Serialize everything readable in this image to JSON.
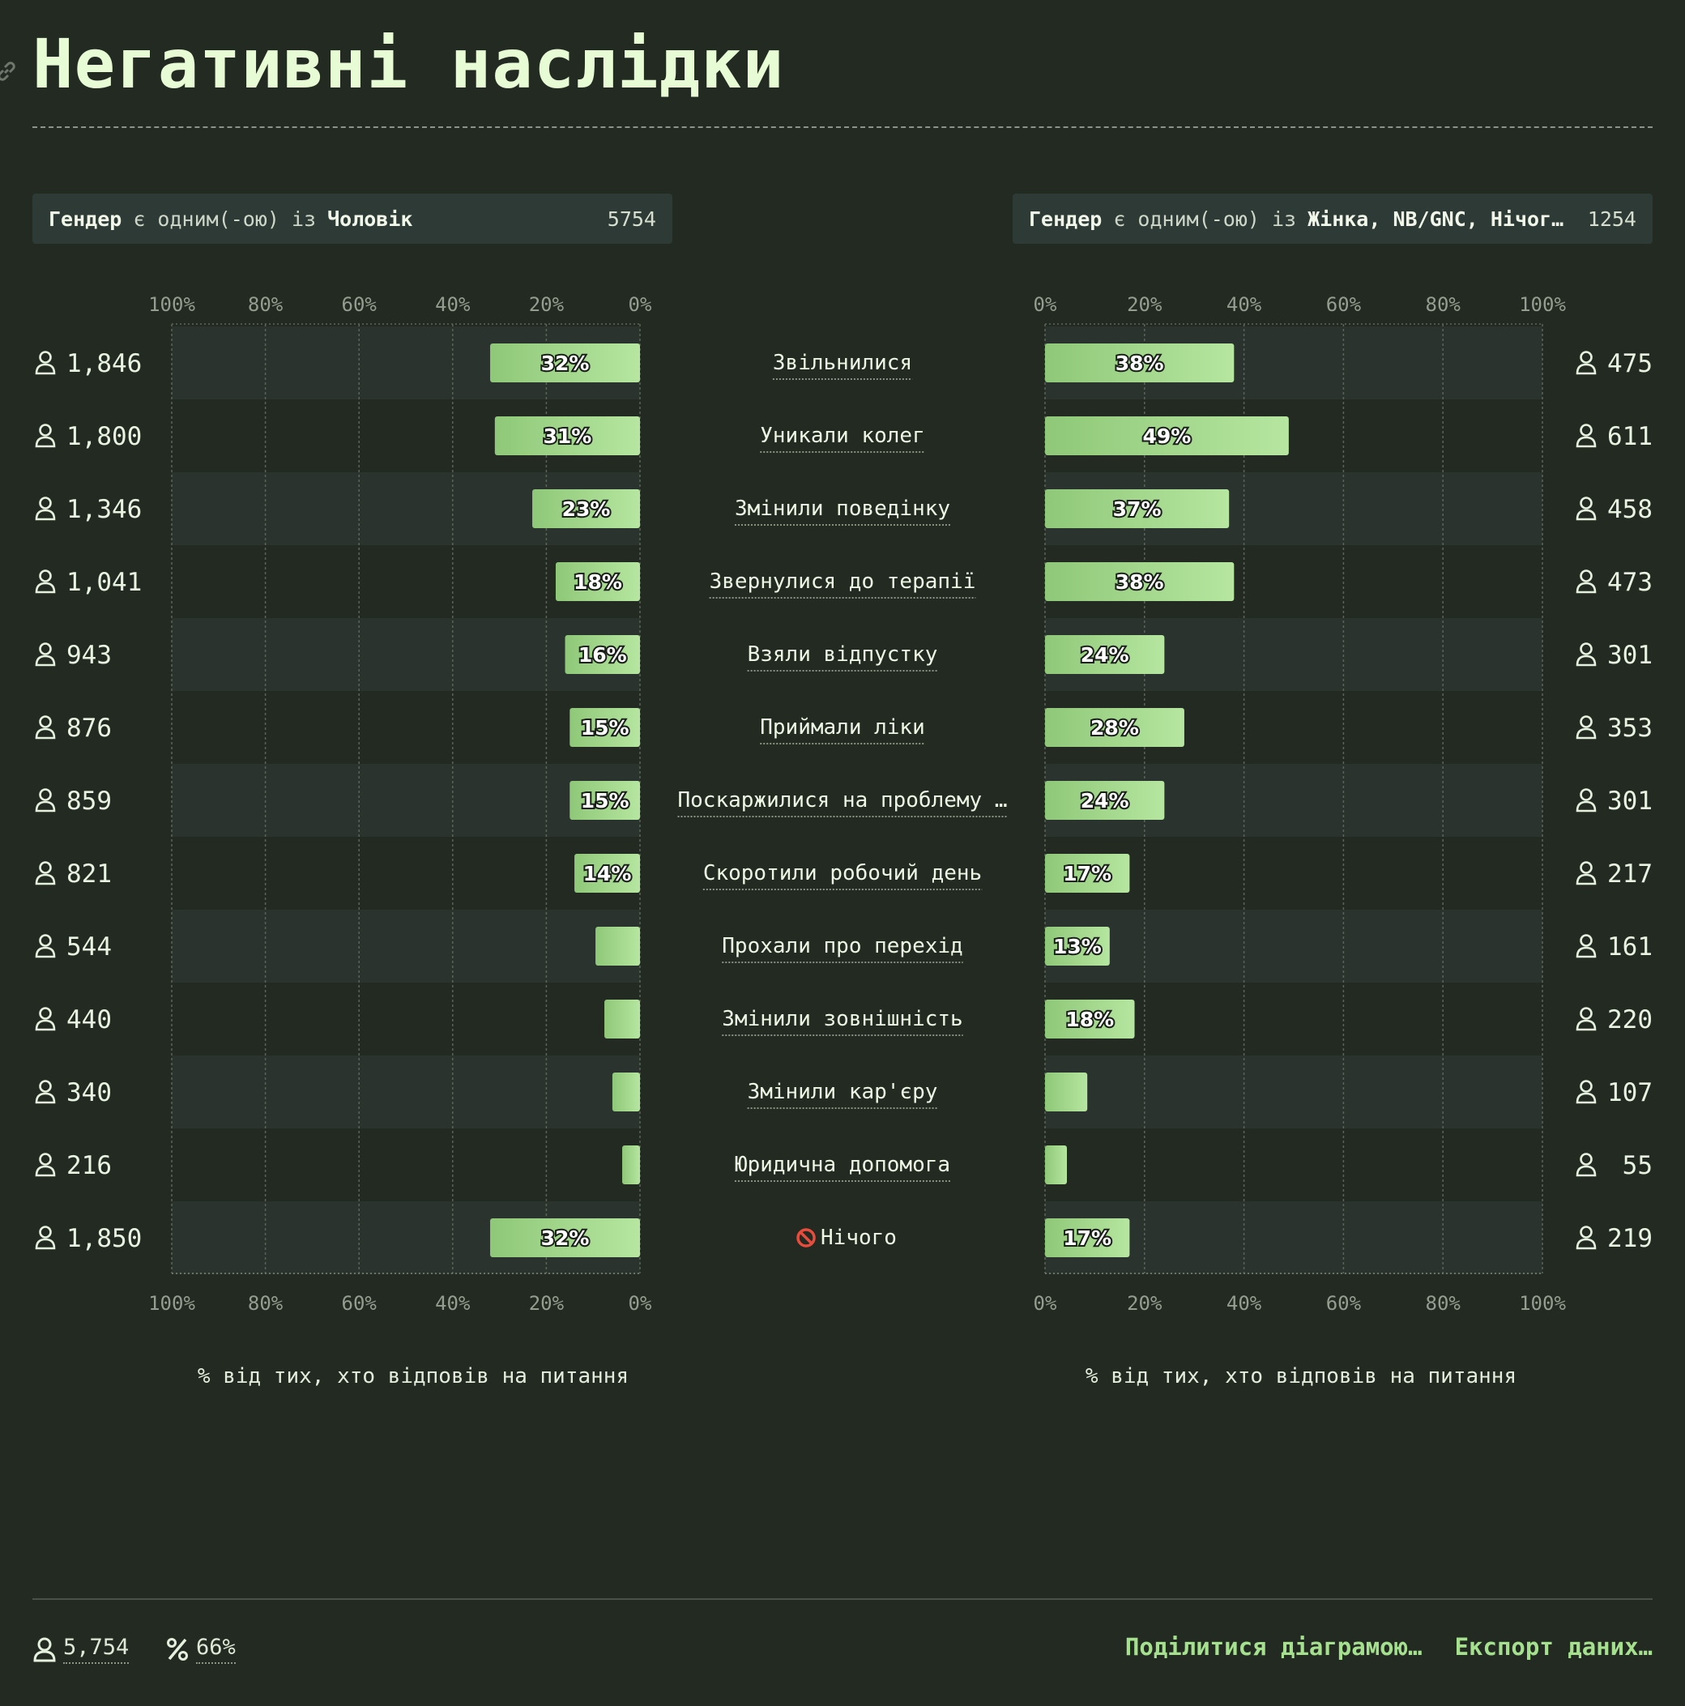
{
  "title": "Негативні наслідки",
  "filters": [
    {
      "field": "Гендер",
      "op": "є одним(-ою) із",
      "value": "Чоловік",
      "count": "5754"
    },
    {
      "field": "Гендер",
      "op": "є одним(-ою) із",
      "value": "Жінка, NB/GNC, Нічого з цього",
      "count": "1254"
    }
  ],
  "axis_ticks_left": [
    "100%",
    "80%",
    "60%",
    "40%",
    "20%",
    "0%"
  ],
  "axis_ticks_right": [
    "0%",
    "20%",
    "40%",
    "60%",
    "80%",
    "100%"
  ],
  "axis_label": "% від тих, хто відповів на питання",
  "chart_data": {
    "type": "bar",
    "orientation": "horizontal-mirrored",
    "xlim": [
      0,
      100
    ],
    "categories": [
      "Звільнилися",
      "Уникали колег",
      "Змінили поведінку",
      "Звернулися до терапії",
      "Взяли відпустку",
      "Приймали ліки",
      "Поскаржилися на проблему …",
      "Скоротили робочий день",
      "Прохали про перехід",
      "Змінили зовнішність",
      "Змінили кар'єру",
      "Юридична допомога",
      "Нічого"
    ],
    "series": [
      {
        "name": "Чоловік",
        "values": [
          32,
          31,
          23,
          18,
          16,
          15,
          15,
          14,
          9.5,
          7.6,
          5.9,
          3.8,
          32
        ],
        "labels": [
          "32%",
          "31%",
          "23%",
          "18%",
          "16%",
          "15%",
          "15%",
          "14%",
          "",
          "",
          "",
          "",
          "32%"
        ],
        "counts": [
          "1,846",
          "1,800",
          "1,346",
          "1,041",
          "943",
          "876",
          "859",
          "821",
          "544",
          "440",
          "340",
          "216",
          "1,850"
        ]
      },
      {
        "name": "Жінка, NB/GNC, Нічого з цього",
        "values": [
          38,
          49,
          37,
          38,
          24,
          28,
          24,
          17,
          13,
          18,
          8.5,
          4.4,
          17
        ],
        "labels": [
          "38%",
          "49%",
          "37%",
          "38%",
          "24%",
          "28%",
          "24%",
          "17%",
          "13%",
          "18%",
          "",
          "",
          "17%"
        ],
        "counts": [
          "475",
          "611",
          "458",
          "473",
          "301",
          "353",
          "301",
          "217",
          "161",
          "220",
          "107",
          "55",
          "219"
        ]
      }
    ]
  },
  "footer": {
    "respondents": "5,754",
    "percent": "66%",
    "share": "Поділитися діаграмою…",
    "export": "Експорт даних…"
  },
  "colors": {
    "bar_start": "#8fc878",
    "bar_end": "#b6e6a0",
    "row_band": "#2a332d"
  }
}
